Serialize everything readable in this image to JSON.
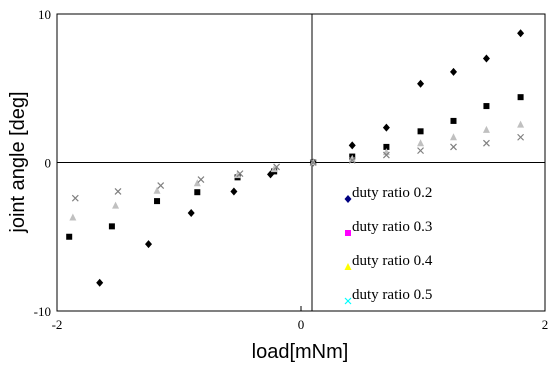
{
  "chart_data": {
    "type": "scatter",
    "title": "",
    "xlabel": "load[mNm]",
    "ylabel": "joint angle [deg]",
    "xlim": [
      -2,
      2
    ],
    "ylim": [
      -10,
      10
    ],
    "x_ticks": [
      "-2",
      "0",
      "2"
    ],
    "y_ticks": [
      "10",
      "0",
      "-10"
    ],
    "grid": false,
    "legend_placement": "lower-right inside plot",
    "series": [
      {
        "name": "duty ratio 0.2",
        "marker": "diamond",
        "color": "#000000",
        "legend_color": "#000080",
        "points": [
          [
            -1.65,
            -8.1
          ],
          [
            -1.25,
            -5.5
          ],
          [
            -0.9,
            -3.4
          ],
          [
            -0.55,
            -1.95
          ],
          [
            -0.25,
            -0.8
          ],
          [
            0.1,
            0.0
          ],
          [
            0.42,
            1.15
          ],
          [
            0.7,
            2.35
          ],
          [
            0.98,
            5.3
          ],
          [
            1.25,
            6.1
          ],
          [
            1.52,
            7.0
          ],
          [
            1.8,
            8.7
          ]
        ]
      },
      {
        "name": "duty ratio 0.3",
        "marker": "square",
        "color": "#000000",
        "legend_color": "#ff00ff",
        "points": [
          [
            -1.9,
            -5.0
          ],
          [
            -1.55,
            -4.3
          ],
          [
            -1.18,
            -2.6
          ],
          [
            -0.85,
            -2.0
          ],
          [
            -0.52,
            -1.0
          ],
          [
            -0.22,
            -0.6
          ],
          [
            0.1,
            0.0
          ],
          [
            0.42,
            0.4
          ],
          [
            0.7,
            1.05
          ],
          [
            0.98,
            2.1
          ],
          [
            1.25,
            2.8
          ],
          [
            1.52,
            3.8
          ],
          [
            1.8,
            4.4
          ]
        ]
      },
      {
        "name": "duty ratio 0.4",
        "marker": "triangle",
        "color": "#c0c0c0",
        "legend_color": "#ffff00",
        "points": [
          [
            -1.87,
            -3.7
          ],
          [
            -1.52,
            -2.9
          ],
          [
            -1.18,
            -1.9
          ],
          [
            -0.85,
            -1.4
          ],
          [
            -0.52,
            -0.85
          ],
          [
            -0.22,
            -0.45
          ],
          [
            0.1,
            0.0
          ],
          [
            0.42,
            0.25
          ],
          [
            0.7,
            0.7
          ],
          [
            0.98,
            1.3
          ],
          [
            1.25,
            1.7
          ],
          [
            1.52,
            2.2
          ],
          [
            1.8,
            2.55
          ]
        ]
      },
      {
        "name": "duty ratio 0.5",
        "marker": "x",
        "color": "#808080",
        "legend_color": "#00ffff",
        "points": [
          [
            -1.85,
            -2.4
          ],
          [
            -1.5,
            -1.95
          ],
          [
            -1.15,
            -1.55
          ],
          [
            -0.82,
            -1.15
          ],
          [
            -0.5,
            -0.75
          ],
          [
            -0.2,
            -0.3
          ],
          [
            0.1,
            0.0
          ],
          [
            0.42,
            0.15
          ],
          [
            0.7,
            0.5
          ],
          [
            0.98,
            0.8
          ],
          [
            1.25,
            1.05
          ],
          [
            1.52,
            1.3
          ],
          [
            1.8,
            1.7
          ]
        ]
      }
    ]
  }
}
